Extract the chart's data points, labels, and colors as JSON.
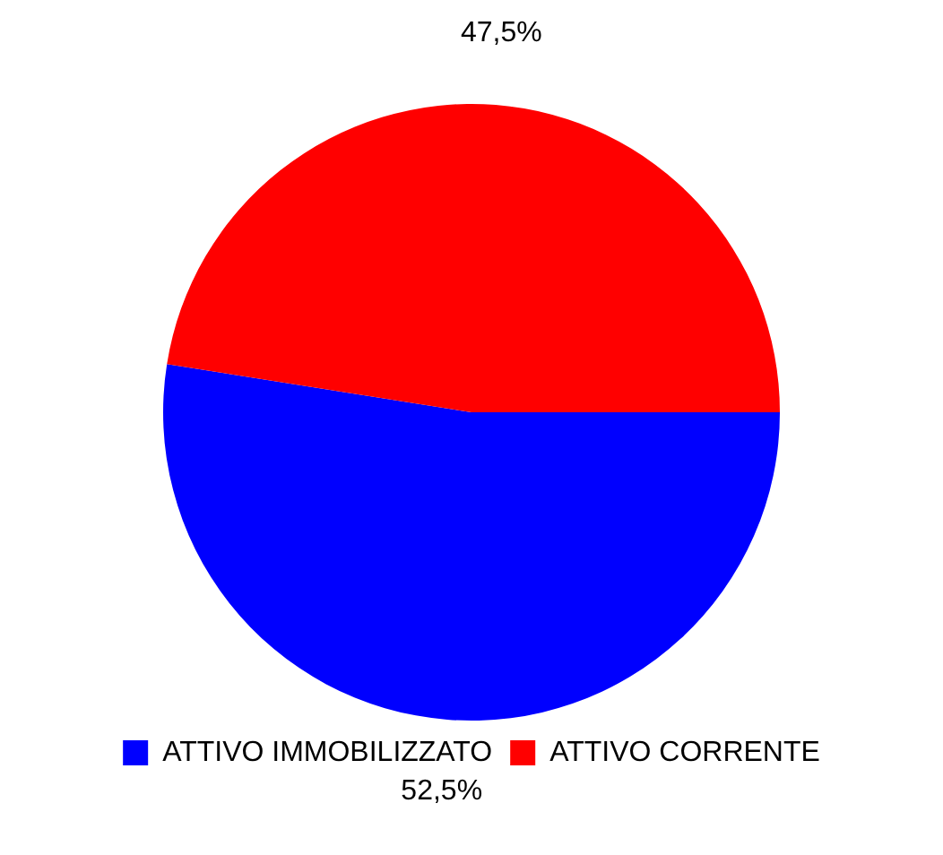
{
  "chart_data": {
    "type": "pie",
    "categories": [
      "ATTIVO IMMOBILIZZATO",
      "ATTIVO CORRENTE"
    ],
    "values": [
      52.5,
      47.5
    ],
    "colors": [
      "#0000ff",
      "#ff0000"
    ],
    "value_labels": [
      "52,5%",
      "47,5%"
    ],
    "legend": "bottom"
  }
}
